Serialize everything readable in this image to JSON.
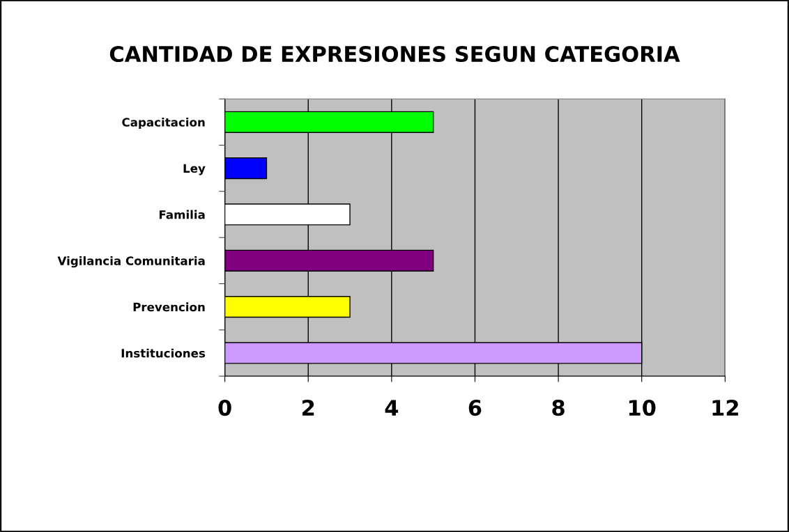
{
  "chart_data": {
    "type": "bar",
    "orientation": "horizontal",
    "title": "CANTIDAD DE EXPRESIONES SEGUN CATEGORIA",
    "categories": [
      "Capacitacion",
      "Ley",
      "Familia",
      "Vigilancia Comunitaria",
      "Prevencion",
      "Instituciones"
    ],
    "values": [
      5,
      1,
      3,
      5,
      3,
      10
    ],
    "colors": [
      "#00ff00",
      "#0000ff",
      "#ffffff",
      "#800080",
      "#ffff00",
      "#cc99ff"
    ],
    "xlim": [
      0,
      12
    ],
    "xticks": [
      0,
      2,
      4,
      6,
      8,
      10,
      12
    ],
    "grid": "x",
    "legend": false
  }
}
